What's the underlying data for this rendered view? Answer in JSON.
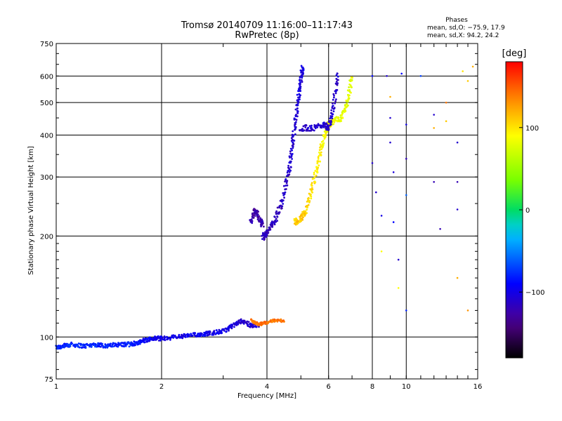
{
  "chart_data": {
    "type": "scatter",
    "title_line1": "Tromsø 20140709 11:16:00–11:17:43",
    "title_line2": "RwPretec (8p)",
    "info": {
      "heading": "Phases",
      "line1": "mean, sd,O: −75.9, 17.9",
      "line2": "mean, sd,X:  94.2, 24.2"
    },
    "xlabel": "Frequency [MHz]",
    "ylabel": "Stationary phase Virtual Height [km]",
    "x_scale": "log",
    "y_scale": "log",
    "xlim": [
      1,
      16
    ],
    "ylim": [
      75,
      750
    ],
    "x_ticks": [
      {
        "value": 1,
        "label": "1"
      },
      {
        "value": 2,
        "label": "2"
      },
      {
        "value": 4,
        "label": "4"
      },
      {
        "value": 6,
        "label": "6"
      },
      {
        "value": 8,
        "label": "8"
      },
      {
        "value": 10,
        "label": "10"
      },
      {
        "value": 16,
        "label": "16"
      }
    ],
    "y_ticks": [
      {
        "value": 75,
        "label": "75"
      },
      {
        "value": 100,
        "label": "100"
      },
      {
        "value": 200,
        "label": "200"
      },
      {
        "value": 300,
        "label": "300"
      },
      {
        "value": 400,
        "label": "400"
      },
      {
        "value": 500,
        "label": "500"
      },
      {
        "value": 600,
        "label": "600"
      },
      {
        "value": 750,
        "label": "750"
      }
    ],
    "colorbar": {
      "label": "[deg]",
      "range": [
        -180,
        180
      ],
      "ticks": [
        {
          "value": 100,
          "label": "100"
        },
        {
          "value": 0,
          "label": "0"
        },
        {
          "value": -100,
          "label": "−100"
        }
      ]
    },
    "traces": [
      {
        "points": [
          [
            1.0,
            93,
            -80
          ],
          [
            1.05,
            94,
            -80
          ],
          [
            1.1,
            95,
            -78
          ],
          [
            1.2,
            94,
            -80
          ],
          [
            1.3,
            95,
            -78
          ],
          [
            1.4,
            94,
            -80
          ],
          [
            1.5,
            95,
            -80
          ],
          [
            1.6,
            95,
            -82
          ],
          [
            1.7,
            96,
            -85
          ],
          [
            1.8,
            98,
            -90
          ],
          [
            1.9,
            99,
            -95
          ],
          [
            2.0,
            99,
            -100
          ],
          [
            2.2,
            100,
            -100
          ],
          [
            2.4,
            101,
            -95
          ],
          [
            2.6,
            102,
            -95
          ],
          [
            2.8,
            103,
            -100
          ],
          [
            3.0,
            104,
            -100
          ],
          [
            3.2,
            108,
            -105
          ],
          [
            3.4,
            112,
            -110
          ],
          [
            3.6,
            108,
            -110
          ],
          [
            3.8,
            109,
            -112
          ]
        ],
        "spread": 0.015
      },
      {
        "points": [
          [
            3.6,
            112,
            140
          ],
          [
            3.8,
            109,
            140
          ],
          [
            3.9,
            110,
            145
          ],
          [
            4.2,
            112,
            140
          ],
          [
            4.5,
            112,
            145
          ]
        ],
        "spread": 0.01
      },
      {
        "points": [
          [
            3.9,
            198,
            -115
          ],
          [
            4.0,
            205,
            -118
          ],
          [
            4.2,
            220,
            -118
          ],
          [
            4.4,
            250,
            -115
          ],
          [
            4.6,
            300,
            -112
          ],
          [
            4.7,
            360,
            -110
          ],
          [
            4.8,
            420,
            -108
          ],
          [
            4.9,
            500,
            -105
          ],
          [
            5.0,
            580,
            -105
          ],
          [
            5.05,
            640,
            -100
          ]
        ],
        "spread": 0.02
      },
      {
        "points": [
          [
            3.6,
            220,
            -120
          ],
          [
            3.7,
            240,
            -125
          ],
          [
            3.8,
            225,
            -125
          ],
          [
            3.9,
            215,
            -120
          ]
        ],
        "spread": 0.02
      },
      {
        "points": [
          [
            4.8,
            220,
            110
          ],
          [
            5.0,
            225,
            110
          ],
          [
            5.2,
            240,
            105
          ],
          [
            5.4,
            280,
            100
          ],
          [
            5.6,
            330,
            95
          ],
          [
            5.8,
            390,
            90
          ],
          [
            6.0,
            430,
            90
          ],
          [
            6.2,
            440,
            85
          ],
          [
            6.5,
            450,
            80
          ],
          [
            6.8,
            500,
            80
          ],
          [
            7.0,
            600,
            80
          ]
        ],
        "spread": 0.02
      },
      {
        "points": [
          [
            5.0,
            420,
            -115
          ],
          [
            5.4,
            420,
            -110
          ],
          [
            5.8,
            430,
            -110
          ],
          [
            6.0,
            420,
            -112
          ],
          [
            6.2,
            480,
            -110
          ],
          [
            6.4,
            620,
            -110
          ]
        ],
        "spread": 0.02
      }
    ],
    "scattered_points": [
      [
        8.0,
        600,
        -90
      ],
      [
        8.0,
        330,
        -110
      ],
      [
        8.2,
        270,
        -110
      ],
      [
        8.5,
        230,
        -100
      ],
      [
        8.5,
        180,
        90
      ],
      [
        9.0,
        520,
        120
      ],
      [
        9.0,
        450,
        -110
      ],
      [
        9.0,
        380,
        -110
      ],
      [
        9.2,
        310,
        -105
      ],
      [
        9.2,
        220,
        -90
      ],
      [
        9.5,
        170,
        -110
      ],
      [
        9.5,
        140,
        90
      ],
      [
        10,
        430,
        -100
      ],
      [
        10,
        340,
        -120
      ],
      [
        10,
        265,
        -60
      ],
      [
        10,
        120,
        -80
      ],
      [
        12,
        290,
        -120
      ],
      [
        12.5,
        210,
        -120
      ],
      [
        13,
        500,
        140
      ],
      [
        13,
        440,
        110
      ],
      [
        14,
        290,
        -120
      ],
      [
        14,
        240,
        -110
      ],
      [
        14,
        150,
        120
      ],
      [
        14,
        380,
        -110
      ],
      [
        14.5,
        620,
        100
      ],
      [
        15,
        580,
        110
      ],
      [
        15,
        120,
        130
      ],
      [
        15.5,
        640,
        120
      ],
      [
        8.8,
        600,
        -110
      ],
      [
        9.7,
        610,
        -90
      ],
      [
        11,
        600,
        -70
      ],
      [
        12,
        460,
        -110
      ],
      [
        12,
        420,
        120
      ]
    ]
  }
}
